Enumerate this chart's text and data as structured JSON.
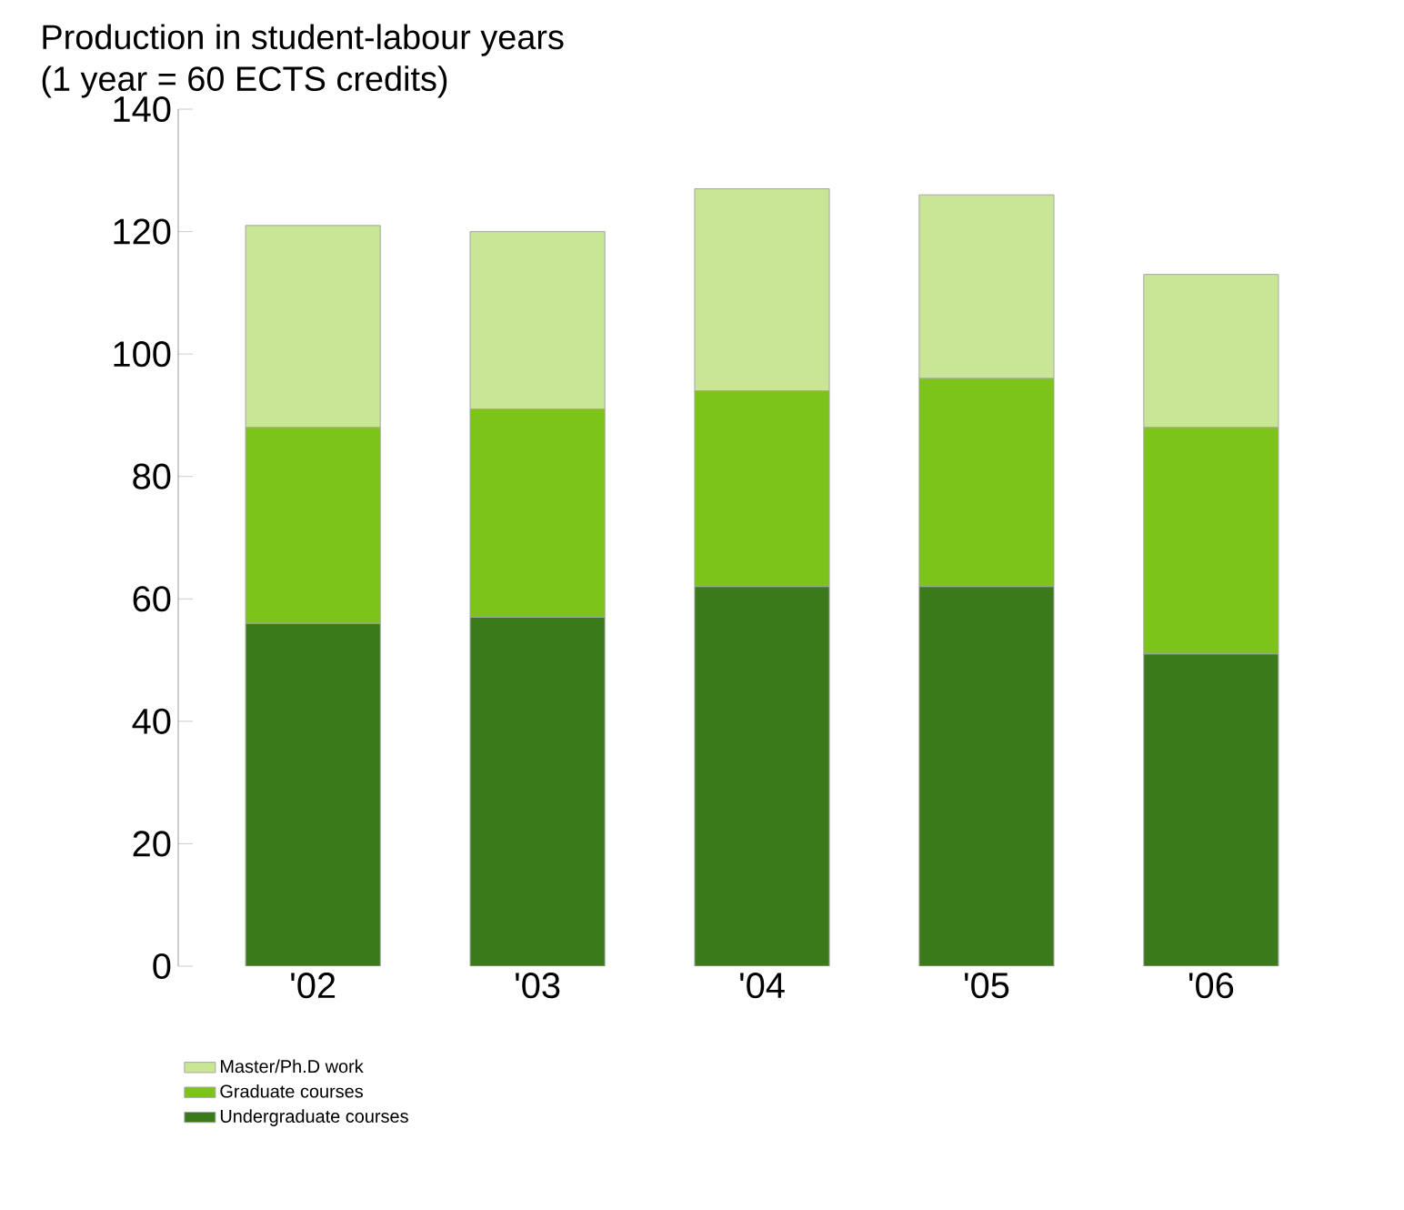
{
  "chart_data": {
    "type": "bar",
    "title": "Production in student-labour years",
    "subtitle": "(1 year = 60 ECTS credits)",
    "categories": [
      "'02",
      "'03",
      "'04",
      "'05",
      "'06"
    ],
    "stacked": true,
    "series": [
      {
        "name": "Undergraduate courses",
        "color": "#3a7a1a",
        "values": [
          56,
          57,
          62,
          62,
          51
        ]
      },
      {
        "name": "Graduate courses",
        "color": "#7dc41a",
        "values": [
          32,
          34,
          32,
          34,
          37
        ]
      },
      {
        "name": "Master/Ph.D work",
        "color": "#c8e696",
        "values": [
          33,
          29,
          33,
          30,
          25
        ]
      }
    ],
    "ylim": [
      0,
      140
    ],
    "yticks": [
      0,
      20,
      40,
      60,
      80,
      100,
      120,
      140
    ],
    "legend": "bottom left"
  }
}
